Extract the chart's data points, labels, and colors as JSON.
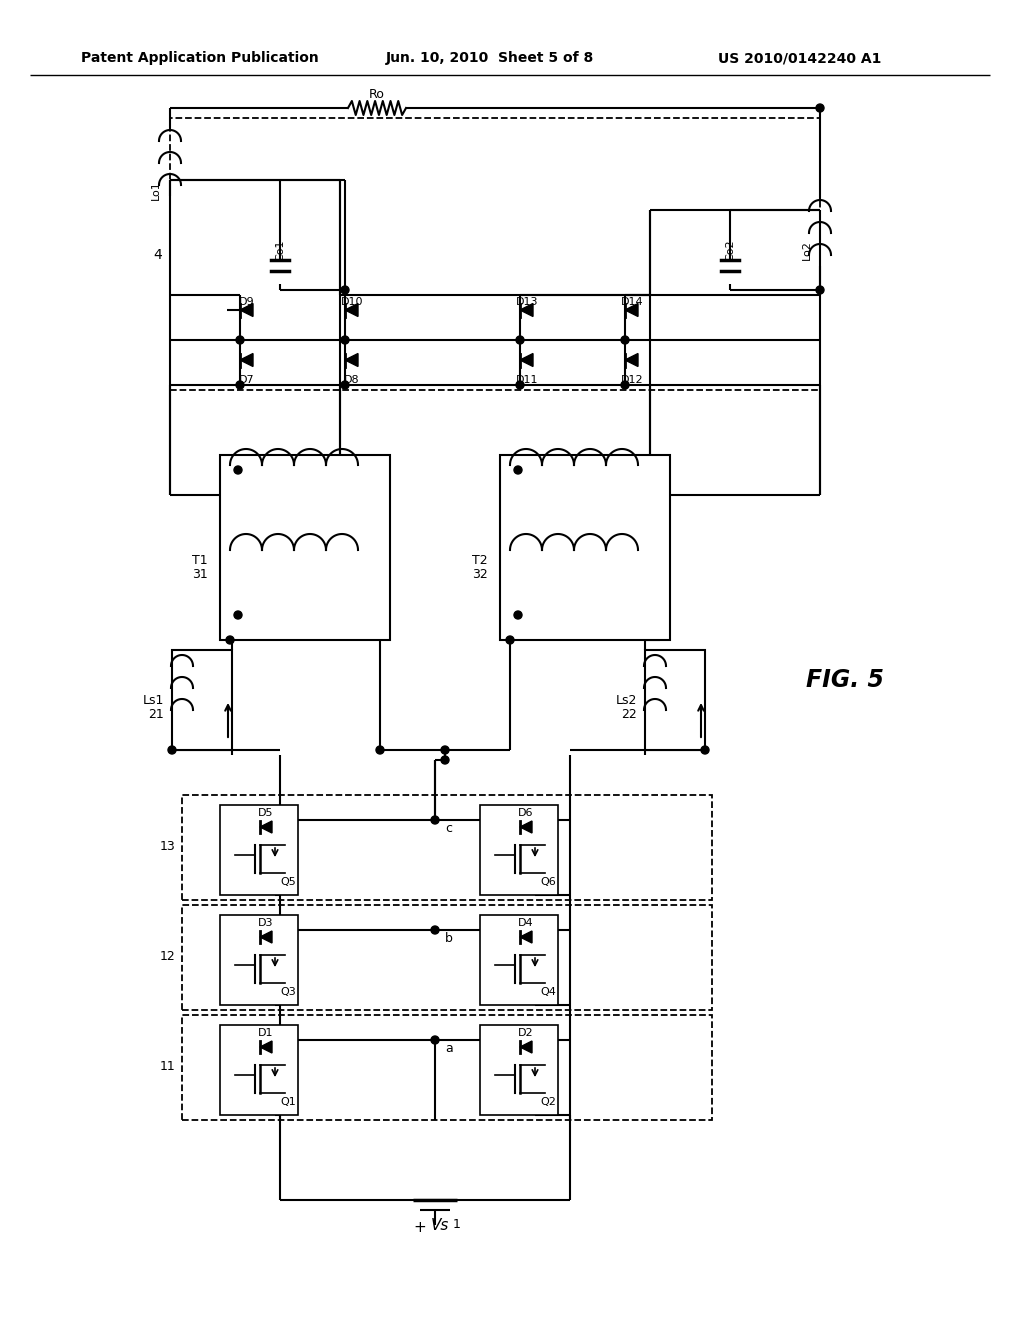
{
  "header_left": "Patent Application Publication",
  "header_center": "Jun. 10, 2010  Sheet 5 of 8",
  "header_right": "US 2010/0142240 A1",
  "fig_label": "FIG. 5",
  "bg_color": "#ffffff"
}
